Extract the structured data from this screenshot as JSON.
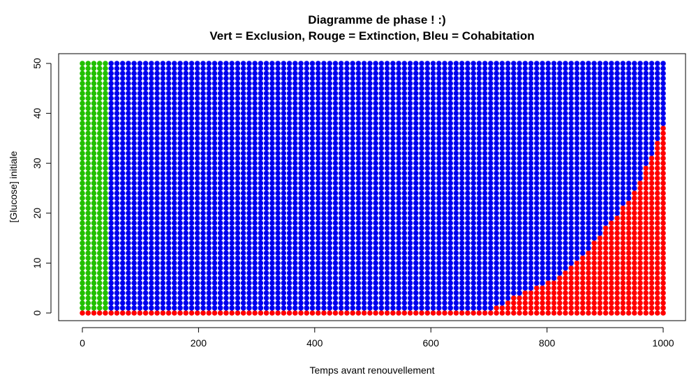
{
  "chart_data": {
    "type": "scatter",
    "title": "Diagramme de phase ! :)",
    "subtitle": "Vert = Exclusion, Rouge = Extinction, Bleu = Cohabitation",
    "xlabel": "Temps avant renouvellement",
    "ylabel": "[Glucose] initiale",
    "xlim": [
      0,
      1000
    ],
    "ylim": [
      0,
      50
    ],
    "x_ticks": [
      "0",
      "200",
      "400",
      "600",
      "800",
      "1000"
    ],
    "y_ticks": [
      "0",
      "10",
      "20",
      "30",
      "40",
      "50"
    ],
    "grid": false,
    "legend": "none",
    "colors": {
      "exclusion": "#22c000",
      "extinction": "#ff0000",
      "cohabitation": "#0000ee"
    },
    "series": [
      {
        "name": "Vert = Exclusion",
        "region": "x < 40, y >= 1"
      },
      {
        "name": "Rouge = Extinction",
        "region": "y = 0 for all x; plus lower-right wedge starting near x = 700 and rising to about y = 37 at x = 1000"
      },
      {
        "name": "Bleu = Cohabitation",
        "region": "remaining area for x >= 40, y >= 1"
      }
    ],
    "boundary": {
      "x": [
        700,
        750,
        800,
        850,
        900,
        950,
        1000
      ],
      "y": [
        0.5,
        3.5,
        6,
        10,
        17,
        24,
        37
      ]
    }
  }
}
